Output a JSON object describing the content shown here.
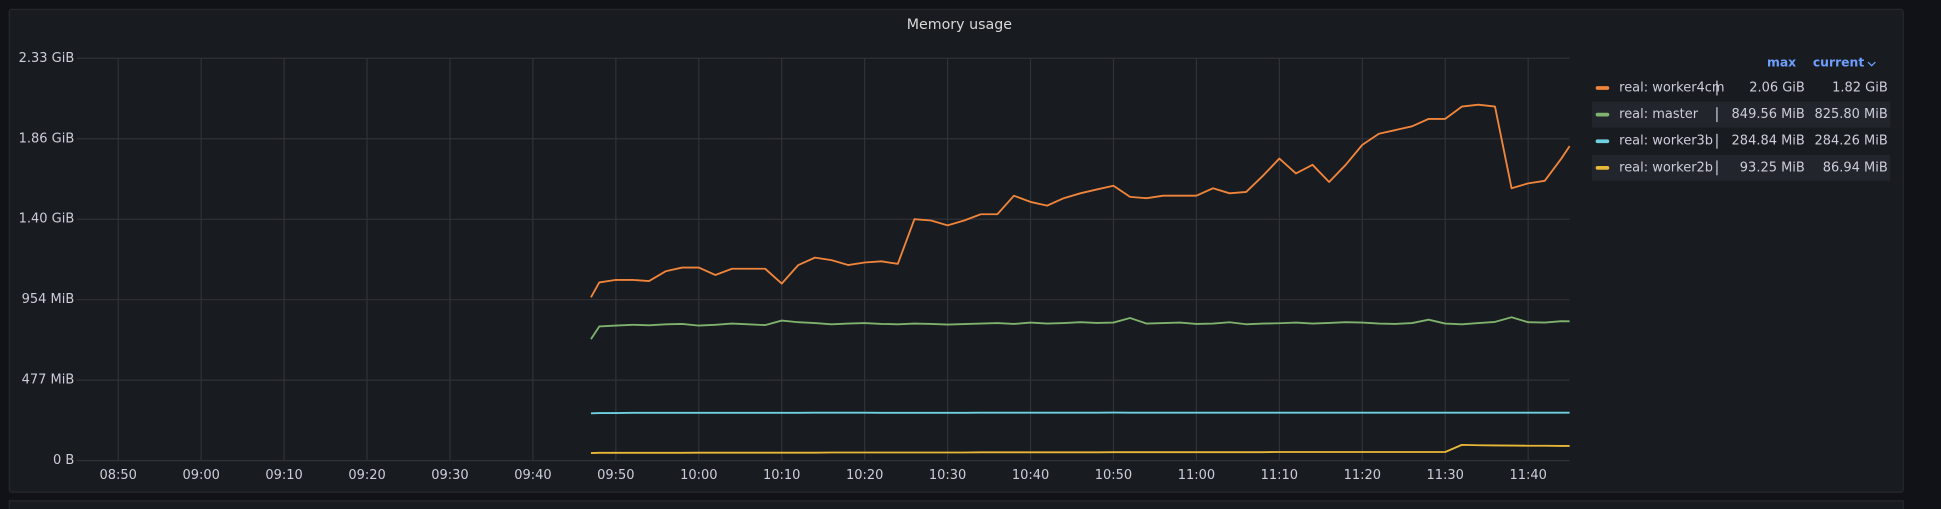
{
  "chart_data": {
    "type": "line",
    "title": "Memory usage",
    "x": [
      "09:47",
      "09:48",
      "09:50",
      "09:52",
      "09:54",
      "09:56",
      "09:58",
      "10:00",
      "10:02",
      "10:04",
      "10:06",
      "10:08",
      "10:10",
      "10:12",
      "10:14",
      "10:16",
      "10:18",
      "10:20",
      "10:22",
      "10:24",
      "10:26",
      "10:28",
      "10:30",
      "10:32",
      "10:34",
      "10:36",
      "10:38",
      "10:40",
      "10:42",
      "10:44",
      "10:46",
      "10:48",
      "10:50",
      "10:52",
      "10:54",
      "10:56",
      "10:58",
      "11:00",
      "11:02",
      "11:04",
      "11:06",
      "11:08",
      "11:10",
      "11:12",
      "11:14",
      "11:16",
      "11:18",
      "11:20",
      "11:22",
      "11:24",
      "11:26",
      "11:28",
      "11:30",
      "11:32",
      "11:34",
      "11:36",
      "11:38",
      "11:40",
      "11:42",
      "11:44",
      "11:45"
    ],
    "xlim": [
      "08:45",
      "11:45"
    ],
    "xticks": [
      "08:50",
      "09:00",
      "09:10",
      "09:20",
      "09:30",
      "09:40",
      "09:50",
      "10:00",
      "10:10",
      "10:20",
      "10:30",
      "10:40",
      "10:50",
      "11:00",
      "11:10",
      "11:20",
      "11:30",
      "11:40"
    ],
    "ylim": [
      0,
      2384.19
    ],
    "yticks": [
      {
        "value": 0,
        "label": "0 B"
      },
      {
        "value": 476.84,
        "label": "477 MiB"
      },
      {
        "value": 953.67,
        "label": "954 MiB"
      },
      {
        "value": 1430.51,
        "label": "1.40 GiB"
      },
      {
        "value": 1907.35,
        "label": "1.86 GiB"
      },
      {
        "value": 2384.19,
        "label": "2.33 GiB"
      }
    ],
    "grid": true,
    "legend_columns": [
      "max",
      "current"
    ],
    "series": [
      {
        "name": "real: worker4cm",
        "color": "#ef843c",
        "max": "2.06 GiB",
        "current": "1.82 GiB",
        "values": [
          968,
          1056,
          1071,
          1071,
          1064,
          1122,
          1144,
          1144,
          1100,
          1137,
          1137,
          1137,
          1049,
          1159,
          1203,
          1188,
          1159,
          1174,
          1181,
          1166,
          1431,
          1423,
          1394,
          1423,
          1460,
          1460,
          1570,
          1533,
          1511,
          1555,
          1584,
          1607,
          1629,
          1563,
          1555,
          1570,
          1570,
          1570,
          1614,
          1584,
          1592,
          1687,
          1790,
          1702,
          1753,
          1651,
          1753,
          1871,
          1937,
          1959,
          1981,
          2025,
          2025,
          2098,
          2109.44,
          2098,
          1614,
          1643,
          1658,
          1790,
          1863.68
        ]
      },
      {
        "name": "real: master",
        "color": "#7eb26d",
        "max": "849.56 MiB",
        "current": "825.80 MiB",
        "values": [
          720,
          795,
          800,
          805,
          802,
          808,
          810,
          800,
          805,
          812,
          808,
          803,
          830,
          820,
          815,
          808,
          812,
          815,
          810,
          808,
          812,
          810,
          806,
          809,
          812,
          815,
          810,
          818,
          812,
          815,
          820,
          816,
          818,
          845,
          812,
          815,
          818,
          810,
          812,
          820,
          808,
          812,
          814,
          818,
          812,
          816,
          820,
          818,
          812,
          810,
          815,
          835,
          812,
          808,
          815,
          822,
          849.56,
          820,
          818,
          826,
          825.8
        ]
      },
      {
        "name": "real: worker3b",
        "color": "#6ed0e0",
        "max": "284.84 MiB",
        "current": "284.26 MiB",
        "values": [
          280,
          282,
          282,
          283,
          283,
          283,
          283,
          283,
          283,
          283,
          283,
          283,
          283,
          283,
          284,
          284,
          284,
          284,
          283,
          283,
          283,
          283,
          283,
          283,
          284,
          284,
          284,
          284,
          284,
          284,
          284,
          284,
          284.84,
          284,
          284,
          284,
          284,
          284,
          284,
          284,
          284,
          284,
          284,
          284,
          284,
          284,
          284,
          284,
          284,
          284,
          284,
          284,
          284,
          284,
          284,
          284,
          284,
          284,
          284,
          284,
          284.26
        ]
      },
      {
        "name": "real: worker2b",
        "color": "#eab839",
        "max": "93.25 MiB",
        "current": "86.94 MiB",
        "values": [
          45,
          46,
          46,
          46,
          46,
          46,
          46,
          47,
          47,
          47,
          47,
          47,
          47,
          47,
          47,
          48,
          48,
          48,
          48,
          48,
          48,
          48,
          48,
          48,
          49,
          49,
          49,
          49,
          49,
          49,
          49,
          49,
          50,
          50,
          50,
          50,
          50,
          50,
          50,
          50,
          50,
          50,
          51,
          51,
          51,
          51,
          51,
          51,
          51,
          51,
          51,
          51,
          51,
          93.25,
          91,
          90,
          89,
          88,
          88,
          87,
          86.94
        ]
      }
    ]
  }
}
